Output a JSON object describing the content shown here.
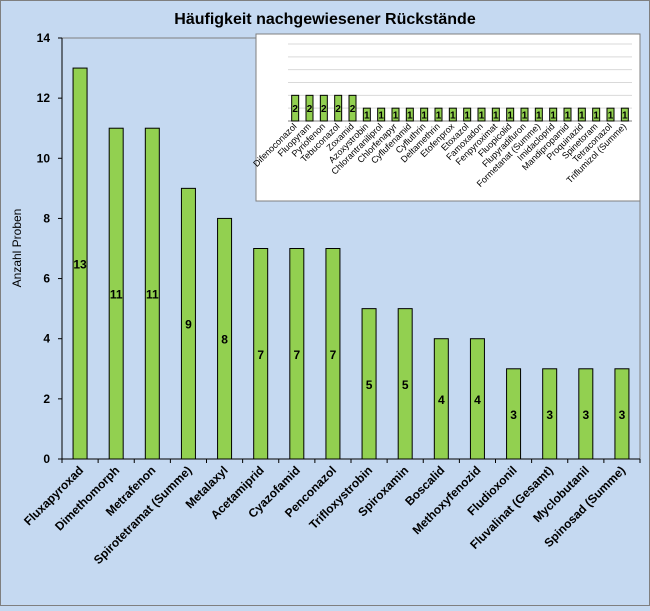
{
  "chart_data": [
    {
      "type": "bar",
      "title": "Häufigkeit nachgewiesener Rückstände",
      "xlabel": "",
      "ylabel": "Anzahl Proben",
      "ylim": [
        0,
        14
      ],
      "yticks": [
        "0",
        "2",
        "4",
        "6",
        "8",
        "10",
        "12",
        "14"
      ],
      "grid": false,
      "bar_color": "#92d050",
      "categories": [
        "Fluxapyroxad",
        "Dimethomorph",
        "Metrafenon",
        "Spirotetramat (Summe)",
        "Metalaxyl",
        "Acetamiprid",
        "Cyazofamid",
        "Penconazol",
        "Trifloxystrobin",
        "Spiroxamin",
        "Boscalid",
        "Methoxyfenozid",
        "Fludioxonil",
        "Fluvalinat (Gesamt)",
        "Myclobutanil",
        "Spinosad (Summe)"
      ],
      "values": [
        13,
        11,
        11,
        9,
        8,
        7,
        7,
        7,
        5,
        5,
        4,
        4,
        3,
        3,
        3,
        3
      ],
      "data_labels": [
        "13",
        "11",
        "11",
        "9",
        "8",
        "7",
        "7",
        "7",
        "5",
        "5",
        "4",
        "4",
        "3",
        "3",
        "3",
        "3"
      ]
    },
    {
      "type": "bar",
      "title": "",
      "xlabel": "",
      "ylabel": "",
      "ylim": [
        0,
        6
      ],
      "grid": true,
      "bar_color": "#92d050",
      "categories": [
        "Difenoconazol",
        "Fluopyram",
        "Pyriofenon",
        "Tebuconazol",
        "Zoxamid",
        "Azoxystrobin",
        "Chlorantraniliprol",
        "Chlorfenapyr",
        "Cyflufenamid",
        "Cyfluthrin",
        "Deltamethrin",
        "Etofenprox",
        "Etoxazol",
        "Famoxadon",
        "Fenpyroximat",
        "Fluopicolid",
        "Flupyradifuron",
        "Formetanat (Summe)",
        "Imidacloprid",
        "Mandipropamid",
        "Proquinazid",
        "Spinetoram",
        "Tetraconazol",
        "Triflumizol (Summe)"
      ],
      "values": [
        2,
        2,
        2,
        2,
        2,
        1,
        1,
        1,
        1,
        1,
        1,
        1,
        1,
        1,
        1,
        1,
        1,
        1,
        1,
        1,
        1,
        1,
        1,
        1
      ],
      "data_labels": [
        "2",
        "2",
        "2",
        "2",
        "2",
        "1",
        "1",
        "1",
        "1",
        "1",
        "1",
        "1",
        "1",
        "1",
        "1",
        "1",
        "1",
        "1",
        "1",
        "1",
        "1",
        "1",
        "1",
        "1"
      ]
    }
  ]
}
